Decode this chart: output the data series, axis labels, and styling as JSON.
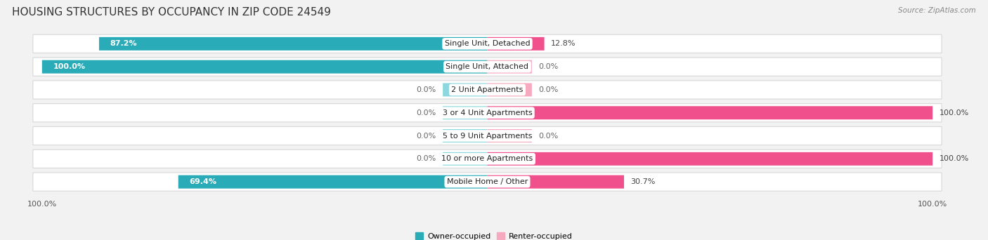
{
  "title": "HOUSING STRUCTURES BY OCCUPANCY IN ZIP CODE 24549",
  "source": "Source: ZipAtlas.com",
  "categories": [
    "Single Unit, Detached",
    "Single Unit, Attached",
    "2 Unit Apartments",
    "3 or 4 Unit Apartments",
    "5 to 9 Unit Apartments",
    "10 or more Apartments",
    "Mobile Home / Other"
  ],
  "owner_values": [
    87.2,
    100.0,
    0.0,
    0.0,
    0.0,
    0.0,
    69.4
  ],
  "renter_values": [
    12.8,
    0.0,
    0.0,
    100.0,
    0.0,
    100.0,
    30.7
  ],
  "owner_color_full": "#2AACB8",
  "owner_color_stub": "#8DD8DE",
  "renter_color_full": "#F0508C",
  "renter_color_stub": "#F7AABF",
  "owner_label": "Owner-occupied",
  "renter_label": "Renter-occupied",
  "background_color": "#f2f2f2",
  "row_bg_color": "#ffffff",
  "row_border_color": "#d8d8d8",
  "title_fontsize": 11,
  "value_fontsize": 8,
  "cat_fontsize": 8,
  "axis_label_fontsize": 8,
  "legend_fontsize": 8,
  "source_fontsize": 7.5,
  "figsize": [
    14.06,
    3.42
  ],
  "dpi": 100,
  "max_val": 100,
  "stub_size": 10
}
